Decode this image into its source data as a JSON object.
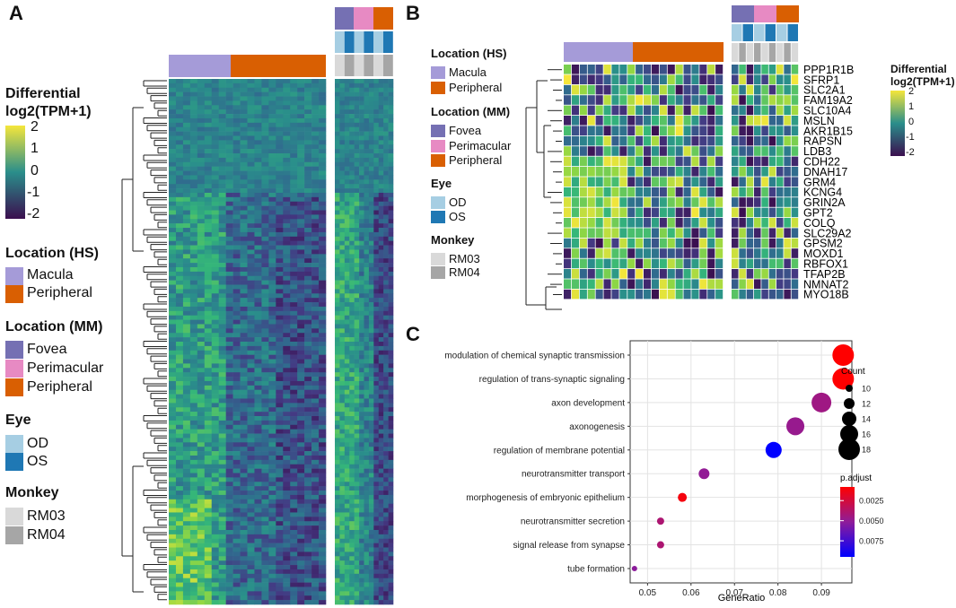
{
  "panels": {
    "a": "A",
    "b": "B",
    "c": "C"
  },
  "colors": {
    "macula": "#A59BD8",
    "peripheral": "#D95F02",
    "fovea": "#7570B3",
    "perimacular": "#E78AC3",
    "od": "#A6CEE3",
    "os": "#1F78B4",
    "rm03": "#D9D9D9",
    "rm04": "#A6A6A6",
    "hm_low": "#3B0F4F",
    "hm_mid": "#2A8E8B",
    "hm_high": "#F5E63B"
  },
  "legend_a": {
    "scale_title_1": "Differential",
    "scale_title_2": "log2(TPM+1)",
    "scale_ticks": [
      "2",
      "1",
      "0",
      "-1",
      "-2"
    ],
    "hs_title": "Location (HS)",
    "hs_items": [
      "Macula",
      "Peripheral"
    ],
    "mm_title": "Location (MM)",
    "mm_items": [
      "Fovea",
      "Perimacular",
      "Peripheral"
    ],
    "eye_title": "Eye",
    "eye_items": [
      "OD",
      "OS"
    ],
    "monkey_title": "Monkey",
    "monkey_items": [
      "RM03",
      "RM04"
    ]
  },
  "legend_b": {
    "hs_title": "Location (HS)",
    "hs_items": [
      "Macula",
      "Peripheral"
    ],
    "mm_title": "Location (MM)",
    "mm_items": [
      "Fovea",
      "Perimacular",
      "Peripheral"
    ],
    "eye_title": "Eye",
    "eye_items": [
      "OD",
      "OS"
    ],
    "monkey_title": "Monkey",
    "monkey_items": [
      "RM03",
      "RM04"
    ],
    "scale_title_1": "Differential",
    "scale_title_2": "log2(TPM+1)",
    "scale_ticks": [
      "2",
      "1",
      "0",
      "-1",
      "-2"
    ]
  },
  "genes": [
    "PPP1R1B",
    "SFRP1",
    "SLC2A1",
    "FAM19A2",
    "SLC10A4",
    "MSLN",
    "AKR1B15",
    "RAPSN",
    "LDB3",
    "CDH22",
    "DNAH17",
    "GRM4",
    "KCNG4",
    "GRIN2A",
    "GPT2",
    "COLQ",
    "SLC29A2",
    "GPSM2",
    "MOXD1",
    "RBFOX1",
    "TFAP2B",
    "NMNAT2",
    "MYO18B"
  ],
  "chart_data": {
    "type": "scatter",
    "title": "",
    "xlabel": "GeneRatio",
    "ylabel": "",
    "xlim": [
      0.046,
      0.097
    ],
    "xticks": [
      0.05,
      0.06,
      0.07,
      0.08,
      0.09
    ],
    "xtick_labels": [
      "0.05",
      "0.06",
      "0.07",
      "0.08",
      "0.09"
    ],
    "categories": [
      "modulation of chemical synaptic transmission",
      "regulation of trans-synaptic signaling",
      "axon development",
      "axonogenesis",
      "regulation of membrane potential",
      "neurotransmitter transport",
      "morphogenesis of embryonic epithelium",
      "neurotransmitter secretion",
      "signal release from synapse",
      "tube formation"
    ],
    "gene_ratio": [
      0.095,
      0.095,
      0.09,
      0.084,
      0.079,
      0.063,
      0.058,
      0.053,
      0.053,
      0.047
    ],
    "count": [
      18,
      18,
      17,
      16,
      15,
      12,
      11,
      10,
      10,
      9
    ],
    "p_adjust": [
      0.0008,
      0.0008,
      0.0045,
      0.0048,
      0.0095,
      0.005,
      0.0012,
      0.004,
      0.004,
      0.0052
    ],
    "size_legend_title": "Count",
    "size_legend_values": [
      10,
      12,
      14,
      16,
      18
    ],
    "size_legend_labels": [
      "10",
      "12",
      "14",
      "16",
      "18"
    ],
    "color_legend_title": "p.adjust",
    "color_legend_range": [
      0.0008,
      0.0095
    ],
    "color_legend_values": [
      0.0025,
      0.005,
      0.0075
    ],
    "color_legend_labels": [
      "0.0025",
      "0.0050",
      "0.0075"
    ],
    "grid": true
  }
}
